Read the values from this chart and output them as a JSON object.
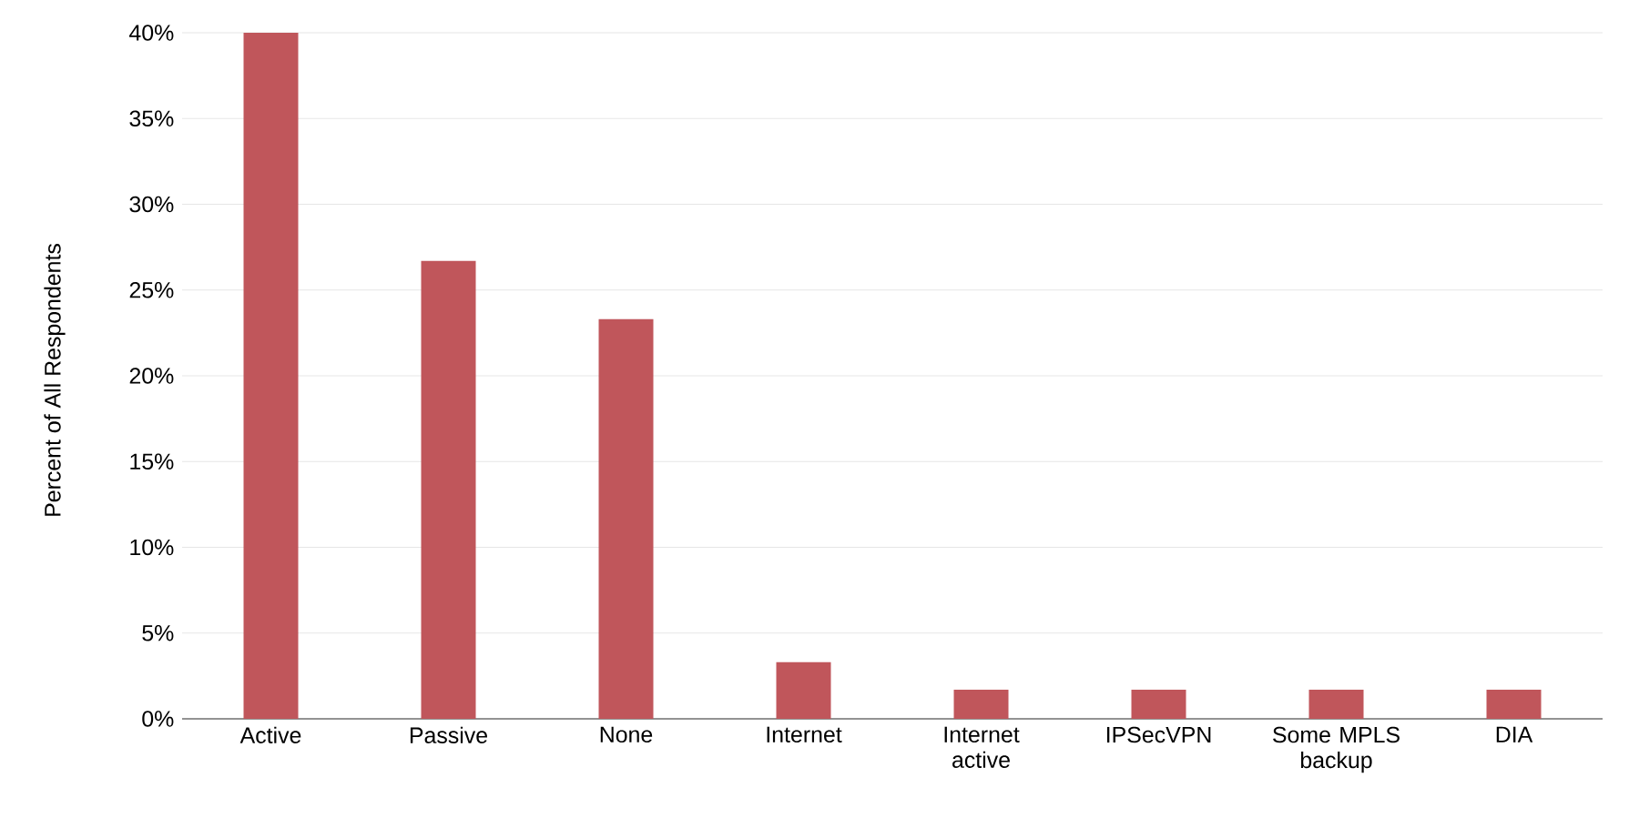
{
  "chart_data": {
    "type": "bar",
    "ylabel": "Percent of All Respondents",
    "categories": [
      "Active",
      "Passive",
      "None",
      "Internet",
      "Internet active",
      "IPSecVPN",
      "Some MPLS backup",
      "DIA"
    ],
    "values": [
      40,
      26.7,
      23.3,
      3.3,
      1.7,
      1.7,
      1.7,
      1.7
    ],
    "color": "#c0565b",
    "ylim": [
      0,
      40
    ],
    "yticks": [
      {
        "value": 0,
        "label": "0%"
      },
      {
        "value": 5,
        "label": "5%"
      },
      {
        "value": 10,
        "label": "10%"
      },
      {
        "value": 15,
        "label": "15%"
      },
      {
        "value": 20,
        "label": "20%"
      },
      {
        "value": 25,
        "label": "25%"
      },
      {
        "value": 30,
        "label": "30%"
      },
      {
        "value": 35,
        "label": "35%"
      },
      {
        "value": 40,
        "label": "40%"
      }
    ],
    "grid": "y"
  }
}
